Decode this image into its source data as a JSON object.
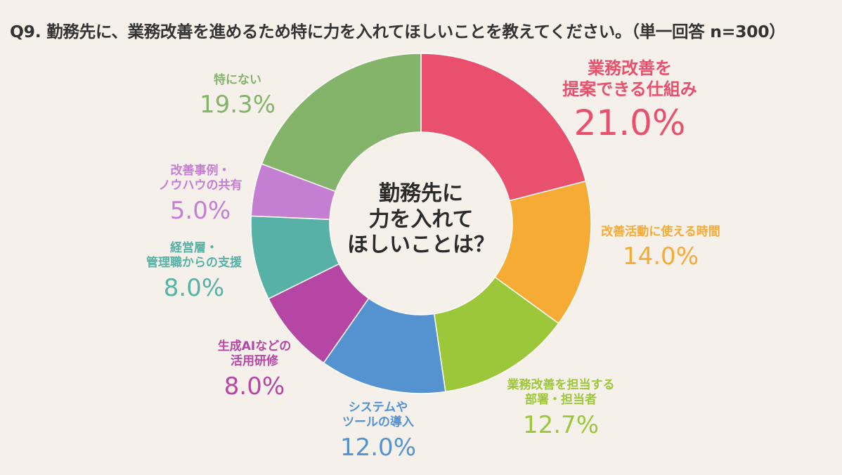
{
  "chart_data": {
    "type": "pie",
    "title": "Q9. 勤務先に、業務改善を進めるため特に力を入れてほしいことを教えてください。（単一回答 n=300）",
    "center_label": [
      "勤務先に",
      "力を入れて",
      "ほしいことは？"
    ],
    "unit": "%",
    "slices": [
      {
        "label": [
          "業務改善を",
          "提案できる仕組み"
        ],
        "value": 21.0,
        "value_text": "21.0%",
        "color": "#e8506d"
      },
      {
        "label": [
          "改善活動に使える時間"
        ],
        "value": 14.0,
        "value_text": "14.0%",
        "color": "#f5ab34"
      },
      {
        "label": [
          "業務改善を担当する",
          "部署・担当者"
        ],
        "value": 12.7,
        "value_text": "12.7%",
        "color": "#9dc73a"
      },
      {
        "label": [
          "システムや",
          "ツールの導入"
        ],
        "value": 12.0,
        "value_text": "12.0%",
        "color": "#5592d0"
      },
      {
        "label": [
          "生成AIなどの",
          "活用研修"
        ],
        "value": 8.0,
        "value_text": "8.0%",
        "color": "#b646a3"
      },
      {
        "label": [
          "経営層・",
          "管理職からの支援"
        ],
        "value": 8.0,
        "value_text": "8.0%",
        "color": "#58b1a6"
      },
      {
        "label": [
          "改善事例・",
          "ノウハウの共有"
        ],
        "value": 5.0,
        "value_text": "5.0%",
        "color": "#c47fd3"
      },
      {
        "label": [
          "特にない"
        ],
        "value": 19.3,
        "value_text": "19.3%",
        "color": "#83b46a"
      }
    ]
  }
}
